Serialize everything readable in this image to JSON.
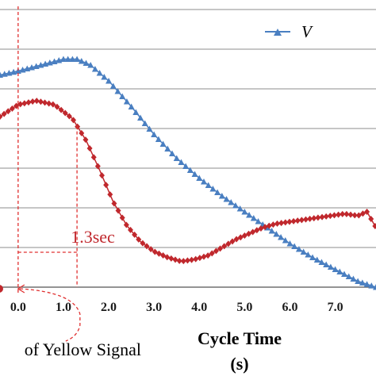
{
  "chart_data": {
    "type": "line",
    "xlabel_line1": "Cycle Time",
    "xlabel_line2": "(s)",
    "annotation": "of Yellow Signal",
    "duration_label": "1.3sec",
    "xlim": [
      -0.4,
      7.9
    ],
    "ylim": [
      0,
      7
    ],
    "grid": true,
    "x_tick_labels": [
      "0.0",
      "1.0",
      "2.0",
      "3.0",
      "4.0",
      "5.0",
      "6.0",
      "7.0"
    ],
    "x_tick_values": [
      0,
      1,
      2,
      3,
      4,
      5,
      6,
      7
    ],
    "markers": {
      "yellow_onset_x": 0.0,
      "decision_x": 1.3
    },
    "legend_position": "top-right",
    "colors": {
      "V": "#4a7fc1",
      "second": "#c0282d",
      "grid": "#8c8c8c",
      "dashed": "#e03030"
    },
    "series": [
      {
        "name": "V",
        "marker": "triangle",
        "x": [
          -0.4,
          0.0,
          0.5,
          1.0,
          1.3,
          1.6,
          2.0,
          2.5,
          3.0,
          3.5,
          4.0,
          4.5,
          5.0,
          5.5,
          6.0,
          6.5,
          7.0,
          7.5,
          7.9
        ],
        "values": [
          5.35,
          5.45,
          5.6,
          5.75,
          5.75,
          5.6,
          5.2,
          4.55,
          3.85,
          3.25,
          2.75,
          2.3,
          1.9,
          1.5,
          1.1,
          0.75,
          0.45,
          0.15,
          0.0
        ]
      },
      {
        "name": "",
        "marker": "diamond",
        "x": [
          -0.4,
          0.0,
          0.4,
          0.8,
          1.2,
          1.5,
          1.8,
          2.1,
          2.4,
          2.7,
          3.0,
          3.3,
          3.6,
          3.9,
          4.2,
          4.5,
          4.8,
          5.1,
          5.4,
          5.7,
          6.0,
          6.3,
          6.6,
          6.9,
          7.2,
          7.5,
          7.7,
          7.9
        ],
        "values": [
          4.3,
          4.6,
          4.7,
          4.6,
          4.25,
          3.7,
          2.95,
          2.15,
          1.55,
          1.15,
          0.9,
          0.75,
          0.65,
          0.7,
          0.8,
          1.0,
          1.2,
          1.35,
          1.5,
          1.6,
          1.65,
          1.7,
          1.75,
          1.8,
          1.85,
          1.8,
          1.9,
          1.5
        ]
      }
    ]
  }
}
